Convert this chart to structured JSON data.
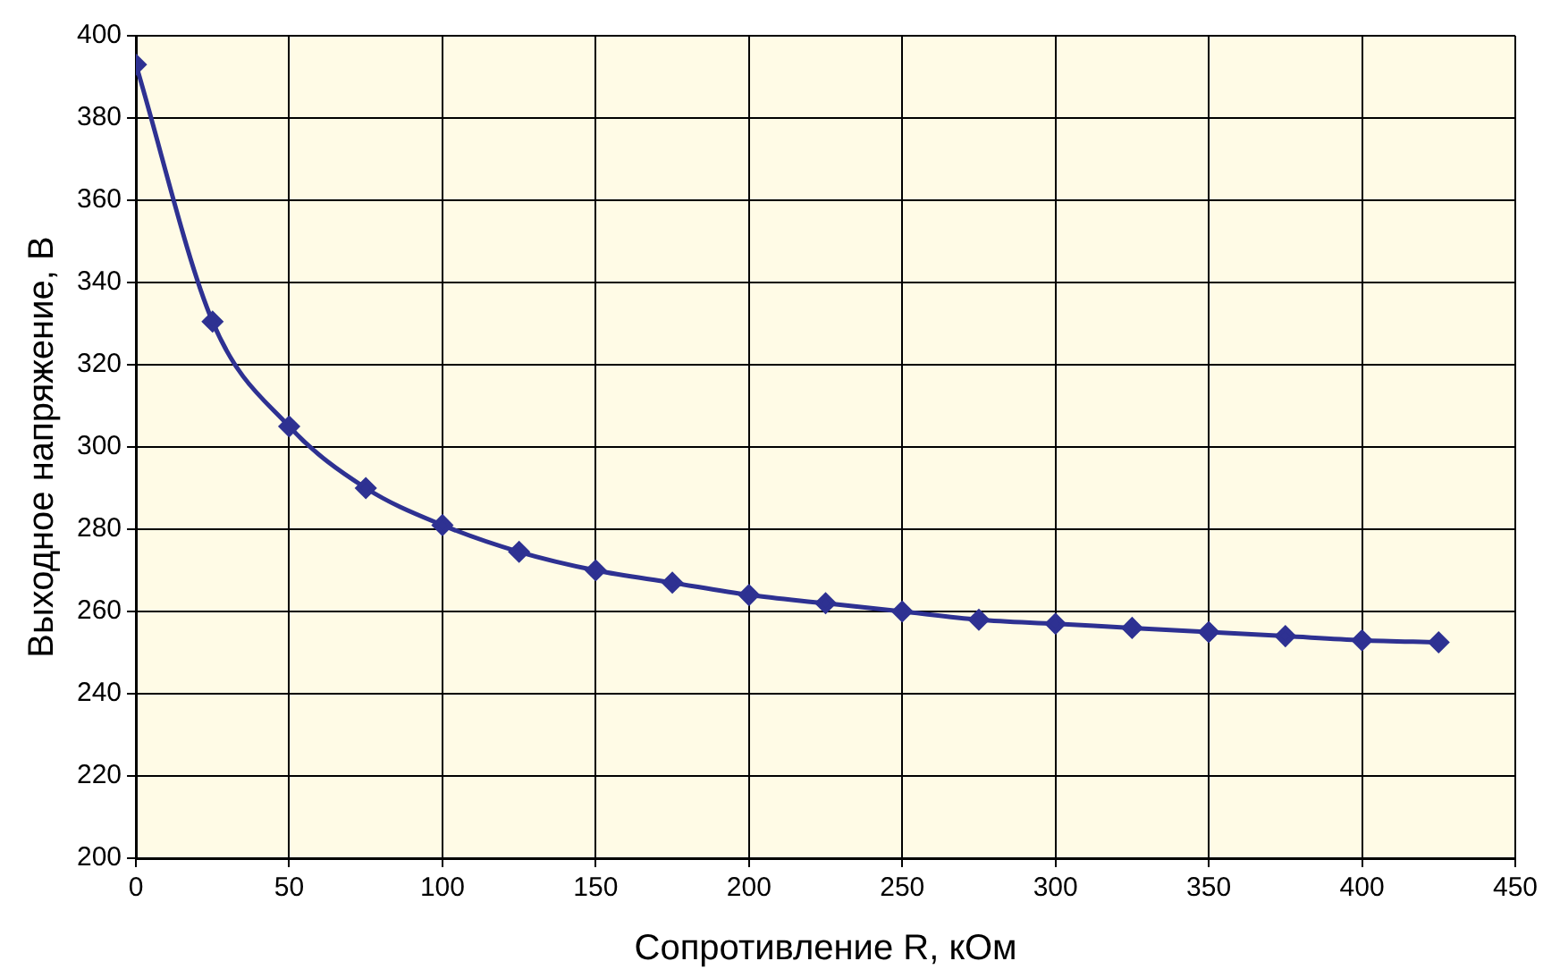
{
  "chart_data": {
    "type": "line",
    "xlabel": "Сопротивление R, кОм",
    "ylabel": "Выходное напряжение, В",
    "x": [
      0,
      25,
      50,
      75,
      100,
      125,
      150,
      175,
      200,
      225,
      250,
      275,
      300,
      325,
      350,
      375,
      400,
      425
    ],
    "series": [
      {
        "color": "#2e3192",
        "values": [
          393,
          330.5,
          305,
          290,
          281,
          274.5,
          270,
          267,
          264,
          262,
          260,
          258,
          257,
          256,
          255,
          254,
          253,
          252.5
        ]
      }
    ],
    "xlim": [
      0,
      450
    ],
    "xticks": [
      0,
      50,
      100,
      150,
      200,
      250,
      300,
      350,
      400,
      450
    ],
    "ylim": [
      200,
      400
    ],
    "yticks": [
      200,
      220,
      240,
      260,
      280,
      300,
      320,
      340,
      360,
      380,
      400
    ],
    "grid": true,
    "legend": false,
    "marker": "diamond",
    "line_style": "solid"
  }
}
